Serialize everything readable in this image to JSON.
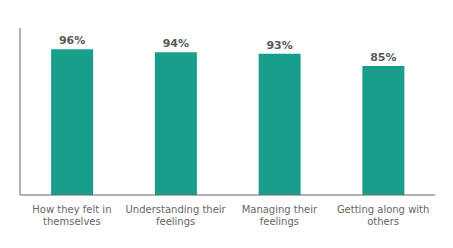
{
  "chart_data": {
    "type": "bar",
    "categories": [
      "How they felt in\nthemselves",
      "Understanding their\nfeelings",
      "Managing their\nfeelings",
      "Getting along with\nothers"
    ],
    "values": [
      96,
      94,
      93,
      85
    ],
    "value_labels": [
      "96%",
      "94%",
      "93%",
      "85%"
    ],
    "color": "#1a9e8c",
    "ylim": [
      0,
      110
    ],
    "grid": false,
    "tick_labels": "x"
  }
}
